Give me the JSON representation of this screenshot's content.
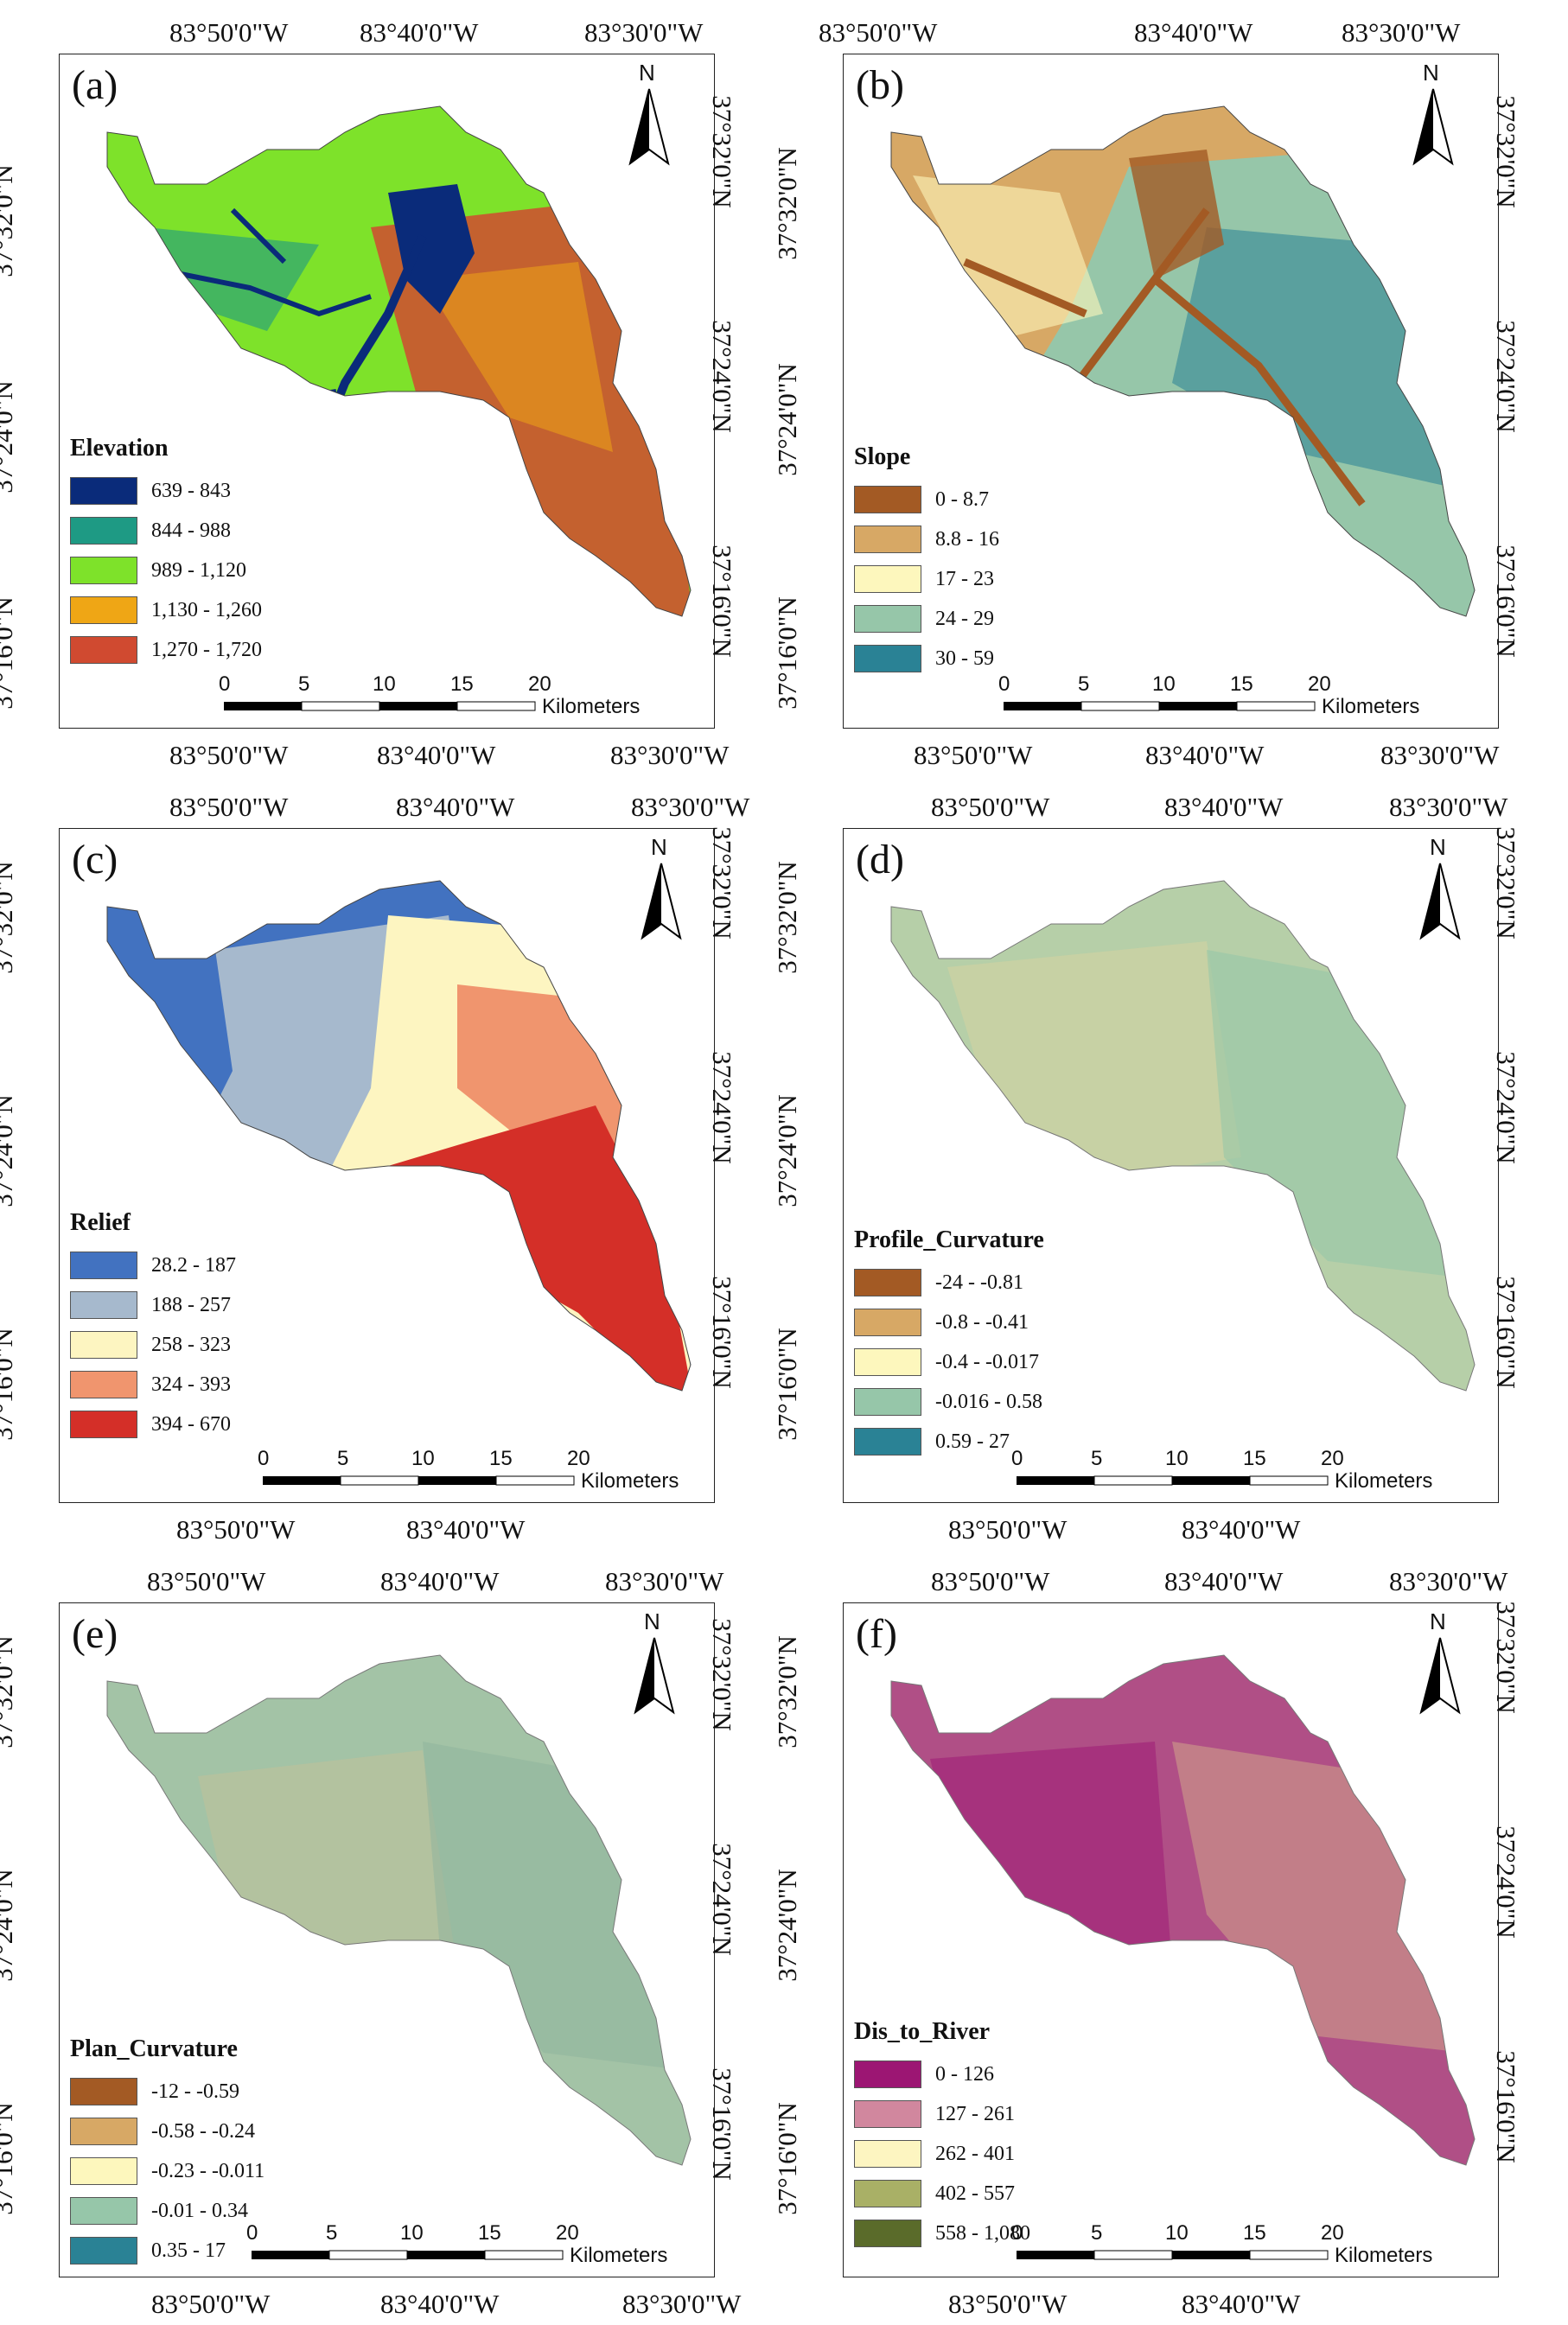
{
  "coords": {
    "lon_a": "83°50'0\"W",
    "lon_b": "83°40'0\"W",
    "lon_c": "83°30'0\"W",
    "lat_top": "37°32'0\"N",
    "lat_mid": "37°24'0\"N",
    "lat_bot": "37°16'0\"N"
  },
  "north_label": "N",
  "scale": {
    "ticks": [
      "0",
      "5",
      "10",
      "15",
      "20"
    ],
    "unit": "Kilometers"
  },
  "panels": [
    {
      "id": "a",
      "label": "(a)",
      "legend_title": "Elevation",
      "classes": [
        {
          "label": "639 - 843",
          "color": "#0a2b7a"
        },
        {
          "label": "844 - 988",
          "color": "#1e9a84"
        },
        {
          "label": "989 - 1,120",
          "color": "#7ee22a"
        },
        {
          "label": "1,130 - 1,260",
          "color": "#efa615"
        },
        {
          "label": "1,270 - 1,720",
          "color": "#d04a30"
        }
      ]
    },
    {
      "id": "b",
      "label": "(b)",
      "legend_title": "Slope",
      "classes": [
        {
          "label": "0 - 8.7",
          "color": "#a35a24"
        },
        {
          "label": "8.8 - 16",
          "color": "#d7a865"
        },
        {
          "label": "17 - 23",
          "color": "#fdf7bd"
        },
        {
          "label": "24 - 29",
          "color": "#96c6a9"
        },
        {
          "label": "30 - 59",
          "color": "#2a8295"
        }
      ]
    },
    {
      "id": "c",
      "label": "(c)",
      "legend_title": "Relief",
      "classes": [
        {
          "label": "28.2 - 187",
          "color": "#4272c0"
        },
        {
          "label": "188 - 257",
          "color": "#a6b9cd"
        },
        {
          "label": "258 - 323",
          "color": "#fdf5c1"
        },
        {
          "label": "324 - 393",
          "color": "#f0956e"
        },
        {
          "label": "394 - 670",
          "color": "#d42f28"
        }
      ]
    },
    {
      "id": "d",
      "label": "(d)",
      "legend_title": "Profile_Curvature",
      "classes": [
        {
          "label": "-24 - -0.81",
          "color": "#a35a24"
        },
        {
          "label": "-0.8 - -0.41",
          "color": "#d7a865"
        },
        {
          "label": "-0.4 - -0.017",
          "color": "#fdf7bd"
        },
        {
          "label": "-0.016 - 0.58",
          "color": "#96c6a9"
        },
        {
          "label": "0.59 - 27",
          "color": "#2a8295"
        }
      ]
    },
    {
      "id": "e",
      "label": "(e)",
      "legend_title": "Plan_Curvature",
      "classes": [
        {
          "label": "-12 - -0.59",
          "color": "#a35a24"
        },
        {
          "label": "-0.58 - -0.24",
          "color": "#d7a865"
        },
        {
          "label": "-0.23 - -0.011",
          "color": "#fdf7bd"
        },
        {
          "label": "-0.01 - 0.34",
          "color": "#96c6a9"
        },
        {
          "label": "0.35 - 17",
          "color": "#2a8295"
        }
      ]
    },
    {
      "id": "f",
      "label": "(f)",
      "legend_title": "Dis_to_River",
      "classes": [
        {
          "label": "0 - 126",
          "color": "#9c1673"
        },
        {
          "label": "127 - 261",
          "color": "#d1879e"
        },
        {
          "label": "262 - 401",
          "color": "#fdf5c1"
        },
        {
          "label": "402 - 557",
          "color": "#a9b066"
        },
        {
          "label": "558 - 1,080",
          "color": "#5a6b2a"
        }
      ]
    }
  ]
}
